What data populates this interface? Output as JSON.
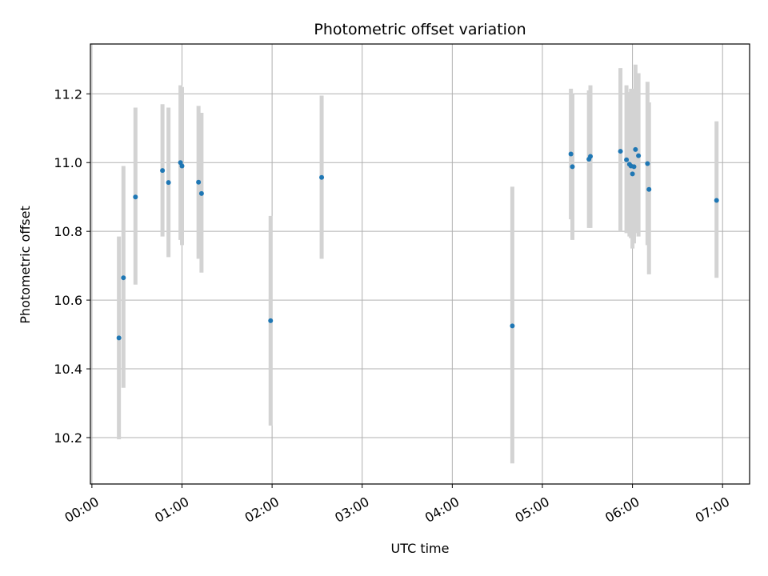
{
  "chart_data": {
    "type": "scatter",
    "title": "Photometric offset variation",
    "xlabel": "UTC time",
    "ylabel": "Photometric offset",
    "x_tick_labels": [
      "00:00",
      "01:00",
      "02:00",
      "03:00",
      "04:00",
      "05:00",
      "06:00",
      "07:00"
    ],
    "x_tick_minutes": [
      0,
      60,
      120,
      180,
      240,
      300,
      360,
      420
    ],
    "y_ticks": [
      10.2,
      10.4,
      10.6,
      10.8,
      11.0,
      11.2
    ],
    "xlim_minutes": [
      -1,
      438
    ],
    "ylim": [
      10.065,
      11.345
    ],
    "grid": true,
    "marker_color": "#1f77b4",
    "errorbar_color": "#d3d3d3",
    "series": [
      {
        "points": [
          {
            "t": "00:18",
            "y": 10.49,
            "lo": 10.195,
            "hi": 10.785
          },
          {
            "t": "00:21",
            "y": 10.665,
            "lo": 10.345,
            "hi": 10.99
          },
          {
            "t": "00:29",
            "y": 10.9,
            "lo": 10.645,
            "hi": 11.16
          },
          {
            "t": "00:47",
            "y": 10.977,
            "lo": 10.785,
            "hi": 11.17
          },
          {
            "t": "00:51",
            "y": 10.942,
            "lo": 10.725,
            "hi": 11.16
          },
          {
            "t": "00:59",
            "y": 11.0,
            "lo": 10.775,
            "hi": 11.225
          },
          {
            "t": "01:00",
            "y": 10.99,
            "lo": 10.76,
            "hi": 11.22
          },
          {
            "t": "01:11",
            "y": 10.943,
            "lo": 10.72,
            "hi": 11.165
          },
          {
            "t": "01:13",
            "y": 10.91,
            "lo": 10.68,
            "hi": 11.145
          },
          {
            "t": "01:59",
            "y": 10.54,
            "lo": 10.235,
            "hi": 10.845
          },
          {
            "t": "02:33",
            "y": 10.957,
            "lo": 10.72,
            "hi": 11.195
          },
          {
            "t": "04:40",
            "y": 10.525,
            "lo": 10.125,
            "hi": 10.93
          },
          {
            "t": "05:19",
            "y": 11.025,
            "lo": 10.835,
            "hi": 11.215
          },
          {
            "t": "05:20",
            "y": 10.988,
            "lo": 10.775,
            "hi": 11.2
          },
          {
            "t": "05:31",
            "y": 11.01,
            "lo": 10.81,
            "hi": 11.21
          },
          {
            "t": "05:32",
            "y": 11.018,
            "lo": 10.81,
            "hi": 11.225
          },
          {
            "t": "05:52",
            "y": 11.033,
            "lo": 10.8,
            "hi": 11.275
          },
          {
            "t": "05:56",
            "y": 11.008,
            "lo": 10.795,
            "hi": 11.225
          },
          {
            "t": "05:58",
            "y": 10.995,
            "lo": 10.785,
            "hi": 11.205
          },
          {
            "t": "05:59",
            "y": 10.99,
            "lo": 10.78,
            "hi": 11.215
          },
          {
            "t": "06:00",
            "y": 10.967,
            "lo": 10.75,
            "hi": 11.185
          },
          {
            "t": "06:01",
            "y": 10.988,
            "lo": 10.765,
            "hi": 11.215
          },
          {
            "t": "06:02",
            "y": 11.038,
            "lo": 10.795,
            "hi": 11.285
          },
          {
            "t": "06:04",
            "y": 11.02,
            "lo": 10.785,
            "hi": 11.26
          },
          {
            "t": "06:10",
            "y": 10.997,
            "lo": 10.76,
            "hi": 11.235
          },
          {
            "t": "06:11",
            "y": 10.922,
            "lo": 10.675,
            "hi": 11.175
          },
          {
            "t": "06:56",
            "y": 10.89,
            "lo": 10.665,
            "hi": 11.12
          }
        ]
      }
    ]
  }
}
